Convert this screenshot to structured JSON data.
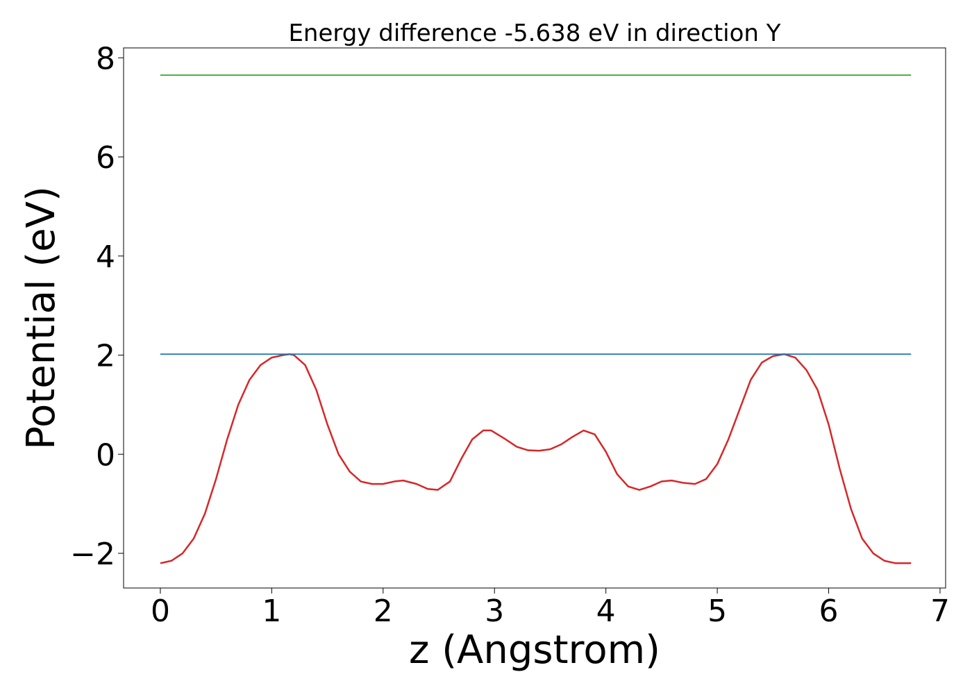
{
  "chart_data": {
    "type": "line",
    "title": "Energy difference -5.638 eV in direction Y",
    "xlabel": "z (Angstrom)",
    "ylabel": "Potential (eV)",
    "xlim": [
      -0.33,
      7.05
    ],
    "ylim": [
      -2.7,
      8.2
    ],
    "xticks": [
      {
        "value": 0,
        "label": "0"
      },
      {
        "value": 1,
        "label": "1"
      },
      {
        "value": 2,
        "label": "2"
      },
      {
        "value": 3,
        "label": "3"
      },
      {
        "value": 4,
        "label": "4"
      },
      {
        "value": 5,
        "label": "5"
      },
      {
        "value": 6,
        "label": "6"
      },
      {
        "value": 7,
        "label": "7"
      }
    ],
    "yticks": [
      {
        "value": -2,
        "label": "−2"
      },
      {
        "value": 0,
        "label": "0"
      },
      {
        "value": 2,
        "label": "2"
      },
      {
        "value": 4,
        "label": "4"
      },
      {
        "value": 6,
        "label": "6"
      },
      {
        "value": 8,
        "label": "8"
      }
    ],
    "grid": false,
    "series": [
      {
        "color": "#d62728",
        "x": [
          0,
          0.1,
          0.2,
          0.3,
          0.4,
          0.5,
          0.6,
          0.7,
          0.8,
          0.9,
          1.0,
          1.1,
          1.16,
          1.2,
          1.3,
          1.4,
          1.5,
          1.6,
          1.7,
          1.8,
          1.9,
          2.0,
          2.1,
          2.18,
          2.3,
          2.4,
          2.49,
          2.6,
          2.7,
          2.8,
          2.9,
          2.97,
          3.1,
          3.2,
          3.3,
          3.4,
          3.5,
          3.6,
          3.7,
          3.8,
          3.9,
          4.0,
          4.1,
          4.2,
          4.3,
          4.4,
          4.5,
          4.59,
          4.7,
          4.8,
          4.9,
          5.0,
          5.1,
          5.2,
          5.3,
          5.4,
          5.5,
          5.6,
          5.7,
          5.8,
          5.9,
          6.0,
          6.1,
          6.2,
          6.3,
          6.4,
          6.5,
          6.6,
          6.74
        ],
        "y": [
          -2.2,
          -2.15,
          -2.0,
          -1.7,
          -1.2,
          -0.5,
          0.3,
          1.0,
          1.5,
          1.8,
          1.95,
          2.0,
          2.02,
          2.0,
          1.8,
          1.3,
          0.6,
          0.0,
          -0.35,
          -0.55,
          -0.6,
          -0.6,
          -0.55,
          -0.53,
          -0.6,
          -0.7,
          -0.72,
          -0.55,
          -0.1,
          0.3,
          0.48,
          0.48,
          0.3,
          0.15,
          0.08,
          0.07,
          0.1,
          0.2,
          0.35,
          0.48,
          0.4,
          0.05,
          -0.4,
          -0.65,
          -0.72,
          -0.65,
          -0.55,
          -0.53,
          -0.58,
          -0.6,
          -0.5,
          -0.2,
          0.3,
          0.9,
          1.5,
          1.85,
          1.98,
          2.02,
          1.95,
          1.7,
          1.3,
          0.6,
          -0.3,
          -1.1,
          -1.7,
          -2.0,
          -2.15,
          -2.2,
          -2.2
        ]
      },
      {
        "color": "#1f77b4",
        "x": [
          0,
          6.74
        ],
        "y": [
          2.02,
          2.02
        ]
      },
      {
        "color": "#2ca02c",
        "x": [
          0,
          6.74
        ],
        "y": [
          7.65,
          7.65
        ]
      }
    ]
  }
}
